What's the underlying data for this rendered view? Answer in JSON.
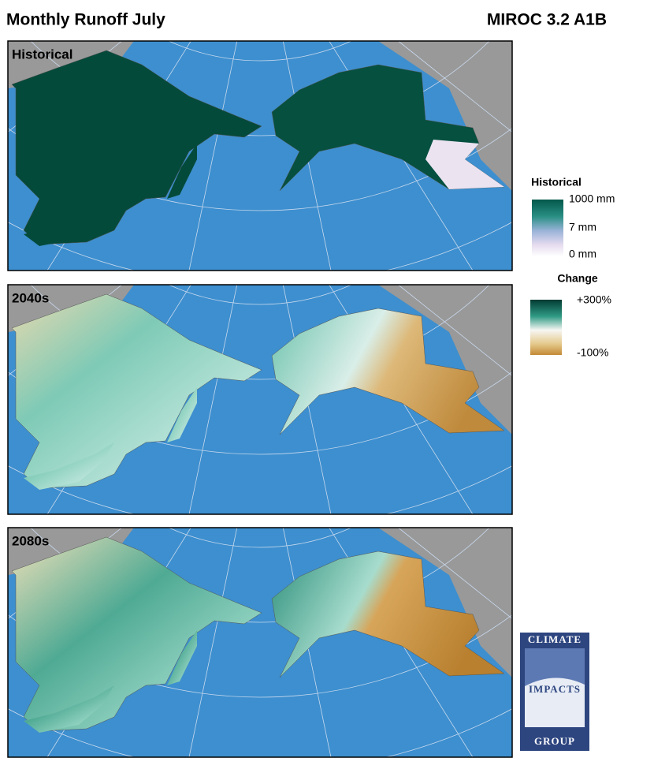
{
  "header": {
    "title": "Monthly Runoff July",
    "model": "MIROC 3.2 A1B"
  },
  "panels": [
    {
      "label": "Historical"
    },
    {
      "label": "2040s"
    },
    {
      "label": "2080s"
    }
  ],
  "legends": [
    {
      "title": "Historical",
      "labels": [
        "1000 mm",
        "7 mm",
        "0 mm"
      ]
    },
    {
      "title": "Change",
      "labels": [
        "+300%",
        "-100%"
      ]
    }
  ],
  "logo": {
    "lines": [
      "CLIMATE",
      "IMPACTS",
      "GROUP"
    ]
  }
}
